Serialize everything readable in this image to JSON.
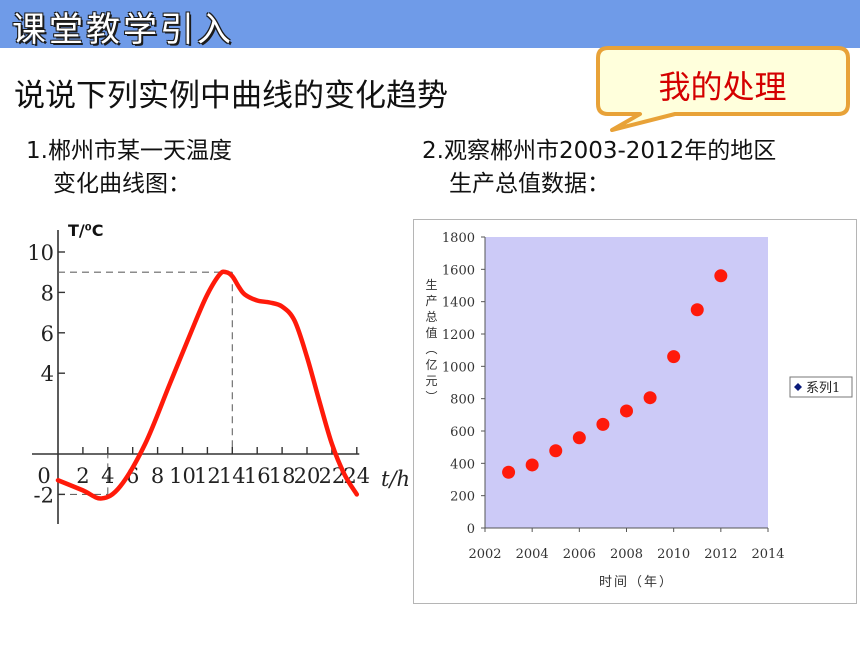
{
  "banner": {
    "title": "课堂教学引入"
  },
  "subtitle": "说说下列实例中曲线的变化趋势",
  "callout": {
    "text": "我的处理",
    "border_color": "#e8a238",
    "fill_color": "#ffffdc",
    "text_color": "#d40000"
  },
  "example1": {
    "line1": "1.郴州市某一天温度",
    "line2": "变化曲线图：",
    "chart_data": {
      "type": "line",
      "ylabel": "T/⁰C",
      "xlabel": "t/h",
      "x_ticks": [
        "0",
        "2",
        "4",
        "6",
        "8",
        "10",
        "12",
        "14",
        "16",
        "18",
        "20",
        "22",
        "24"
      ],
      "y_ticks": [
        "-2",
        "4",
        "6",
        "8",
        "10"
      ],
      "xlim": [
        0,
        24
      ],
      "ylim": [
        -2,
        10
      ],
      "x": [
        0,
        2,
        3.5,
        5,
        7,
        9,
        11,
        12,
        13,
        13.5,
        14,
        14.5,
        15,
        16,
        17,
        18,
        19,
        20,
        21,
        22,
        23,
        24
      ],
      "y": [
        -1.3,
        -1.8,
        -2.2,
        -1.6,
        0.5,
        3.5,
        6.5,
        7.9,
        8.9,
        9.0,
        8.8,
        8.3,
        7.9,
        7.6,
        7.5,
        7.3,
        6.6,
        4.8,
        2.6,
        0.5,
        -1.0,
        -2.0
      ],
      "reference_lines": [
        {
          "x": 14,
          "y": 9
        },
        {
          "x": 4,
          "y": -2
        }
      ],
      "line_color": "#ff1a0a"
    }
  },
  "example2": {
    "line1": "2.观察郴州市2003-2012年的地区",
    "line2": "生产总值数据：",
    "chart_data": {
      "type": "scatter",
      "xlabel": "时间（年）",
      "ylabel": "生产总值（亿元）",
      "x_ticks": [
        "2002",
        "2004",
        "2006",
        "2008",
        "2010",
        "2012",
        "2014"
      ],
      "y_ticks": [
        "0",
        "200",
        "400",
        "600",
        "800",
        "1000",
        "1200",
        "1400",
        "1600",
        "1800"
      ],
      "xlim": [
        2002,
        2014
      ],
      "ylim": [
        0,
        1800
      ],
      "series": [
        {
          "name": "系列1",
          "x": [
            2003,
            2004,
            2005,
            2006,
            2007,
            2008,
            2009,
            2010,
            2011,
            2012
          ],
          "y": [
            345,
            390,
            478,
            558,
            641,
            724,
            806,
            1060,
            1350,
            1560
          ]
        }
      ],
      "legend": "right",
      "plot_bg": "#cccaf7",
      "point_color": "#ff1a0a"
    }
  }
}
